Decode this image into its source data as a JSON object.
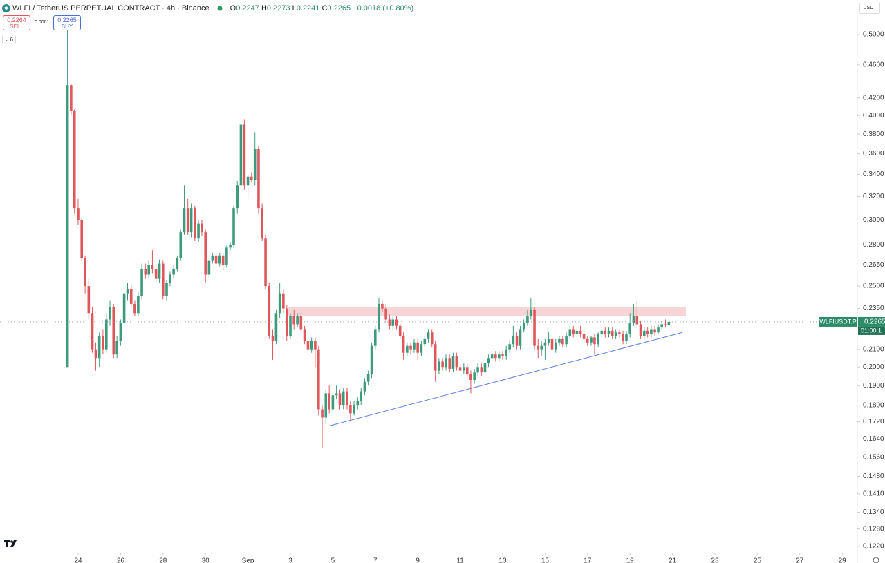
{
  "header": {
    "symbol": "WLFI / TetherUS PERPETUAL CONTRACT · 4h · Binance",
    "o": "O",
    "h": "H",
    "l": "L",
    "c": "C",
    "change": "+0.0018 (+0.80%)"
  },
  "trade": {
    "sell_price": "0.2264",
    "sell": "SELL",
    "spread": "0.0001",
    "buy_price": "0.2265",
    "buy": "BUY",
    "indicators": "6"
  },
  "currency": "USDT",
  "symbol_tag": "WLFIUSDT.P",
  "countdown": "01:00:1",
  "chart_data": {
    "type": "candlestick",
    "log_scale": true,
    "up_color": "#3d9a7c",
    "down_color": "#e0575b",
    "xlim": [
      20.32,
      60.71
    ],
    "ylim": [
      0.1199,
      0.55
    ],
    "xticks": [
      24,
      26,
      28,
      30,
      {
        "value": 32,
        "label": "Sep"
      },
      {
        "value": 34,
        "label": "3"
      },
      {
        "value": 36,
        "label": "5"
      },
      {
        "value": 38,
        "label": "7"
      },
      {
        "value": 40,
        "label": "9"
      },
      {
        "value": 42,
        "label": "11"
      },
      {
        "value": 44,
        "label": "13"
      },
      {
        "value": 46,
        "label": "15"
      },
      {
        "value": 48,
        "label": "17"
      },
      {
        "value": 50,
        "label": "19"
      },
      {
        "value": 52,
        "label": "21"
      },
      {
        "value": 54,
        "label": "23"
      },
      {
        "value": 56,
        "label": "25"
      },
      {
        "value": 58,
        "label": "27"
      },
      {
        "value": 60,
        "label": "29"
      }
    ],
    "yticks": [
      {
        "value": 0.5,
        "label": "0.5000"
      },
      {
        "value": 0.46,
        "label": "0.4600"
      },
      {
        "value": 0.42,
        "label": "0.4200"
      },
      {
        "value": 0.4,
        "label": "0.4000"
      },
      {
        "value": 0.38,
        "label": "0.3800"
      },
      {
        "value": 0.36,
        "label": "0.3600"
      },
      {
        "value": 0.34,
        "label": "0.3400"
      },
      {
        "value": 0.32,
        "label": "0.3200"
      },
      {
        "value": 0.3,
        "label": "0.3000"
      },
      {
        "value": 0.28,
        "label": "0.2800"
      },
      {
        "value": 0.265,
        "label": "0.2650"
      },
      {
        "value": 0.25,
        "label": "0.2500"
      },
      {
        "value": 0.235,
        "label": "0.2350"
      },
      {
        "value": 0.21,
        "label": "0.2100"
      },
      {
        "value": 0.2,
        "label": "0.2000"
      },
      {
        "value": 0.19,
        "label": "0.1900"
      },
      {
        "value": 0.18,
        "label": "0.1800"
      },
      {
        "value": 0.172,
        "label": "0.1720"
      },
      {
        "value": 0.164,
        "label": "0.1640"
      },
      {
        "value": 0.156,
        "label": "0.1560"
      },
      {
        "value": 0.148,
        "label": "0.1480"
      },
      {
        "value": 0.141,
        "label": "0.1410"
      },
      {
        "value": 0.134,
        "label": "0.1340"
      },
      {
        "value": 0.128,
        "label": "0.1280"
      },
      {
        "value": 0.122,
        "label": "0.1220"
      }
    ],
    "zone": {
      "x": [
        33.9,
        52.63
      ],
      "y": [
        0.23,
        0.236
      ],
      "color": "#f5c9cb"
    },
    "trendline": {
      "x": [
        35.82,
        52.47
      ],
      "y": [
        0.17,
        0.22
      ],
      "color": "#5b7fe0"
    },
    "x": [
      23.5,
      23.67,
      23.83,
      24,
      24.17,
      24.33,
      24.5,
      24.67,
      24.83,
      25,
      25.17,
      25.33,
      25.5,
      25.67,
      25.83,
      26,
      26.17,
      26.33,
      26.5,
      26.67,
      26.83,
      27,
      27.17,
      27.33,
      27.5,
      27.67,
      27.83,
      28,
      28.17,
      28.33,
      28.5,
      28.67,
      28.83,
      29,
      29.17,
      29.33,
      29.5,
      29.67,
      29.83,
      30,
      30.17,
      30.33,
      30.5,
      30.67,
      30.83,
      31,
      31.17,
      31.33,
      31.5,
      31.67,
      31.83,
      32,
      32.17,
      32.33,
      32.5,
      32.67,
      32.83,
      33,
      33.17,
      33.33,
      33.5,
      33.67,
      33.83,
      34,
      34.17,
      34.33,
      34.5,
      34.67,
      34.83,
      35,
      35.17,
      35.33,
      35.5,
      35.67,
      35.83,
      36,
      36.17,
      36.33,
      36.5,
      36.67,
      36.83,
      37,
      37.17,
      37.33,
      37.5,
      37.67,
      37.83,
      38,
      38.17,
      38.33,
      38.5,
      38.67,
      38.83,
      39,
      39.17,
      39.33,
      39.5,
      39.67,
      39.83,
      40,
      40.17,
      40.33,
      40.5,
      40.67,
      40.83,
      41,
      41.17,
      41.33,
      41.5,
      41.67,
      41.83,
      42,
      42.17,
      42.33,
      42.5,
      42.67,
      42.83,
      43,
      43.17,
      43.33,
      43.5,
      43.67,
      43.83,
      44,
      44.17,
      44.33,
      44.5,
      44.67,
      44.83,
      45,
      45.17,
      45.33,
      45.5,
      45.67,
      45.83,
      46,
      46.17,
      46.33,
      46.5,
      46.67,
      46.83,
      47,
      47.17,
      47.33,
      47.5,
      47.67,
      47.83,
      48,
      48.17,
      48.33,
      48.5,
      48.67,
      48.83,
      49,
      49.17,
      49.33,
      49.5,
      49.67,
      49.83,
      50,
      50.17,
      50.33,
      50.5,
      50.67,
      50.83,
      51,
      51.17,
      51.33,
      51.5,
      51.67,
      51.83
    ],
    "open": [
      0.2,
      0.435,
      0.405,
      0.31,
      0.3,
      0.27,
      0.25,
      0.232,
      0.21,
      0.205,
      0.218,
      0.21,
      0.228,
      0.236,
      0.207,
      0.215,
      0.226,
      0.245,
      0.248,
      0.238,
      0.232,
      0.243,
      0.262,
      0.258,
      0.265,
      0.262,
      0.255,
      0.266,
      0.243,
      0.252,
      0.258,
      0.262,
      0.27,
      0.29,
      0.31,
      0.29,
      0.31,
      0.285,
      0.297,
      0.29,
      0.258,
      0.268,
      0.272,
      0.266,
      0.272,
      0.265,
      0.278,
      0.28,
      0.31,
      0.33,
      0.39,
      0.33,
      0.338,
      0.335,
      0.365,
      0.31,
      0.285,
      0.25,
      0.218,
      0.215,
      0.232,
      0.245,
      0.235,
      0.218,
      0.23,
      0.225,
      0.23,
      0.222,
      0.215,
      0.21,
      0.215,
      0.21,
      0.178,
      0.174,
      0.186,
      0.178,
      0.185,
      0.186,
      0.18,
      0.187,
      0.18,
      0.176,
      0.18,
      0.182,
      0.187,
      0.192,
      0.196,
      0.212,
      0.222,
      0.238,
      0.235,
      0.228,
      0.224,
      0.228,
      0.224,
      0.218,
      0.208,
      0.212,
      0.21,
      0.214,
      0.208,
      0.213,
      0.216,
      0.22,
      0.213,
      0.198,
      0.203,
      0.2,
      0.205,
      0.199,
      0.206,
      0.2,
      0.198,
      0.2,
      0.196,
      0.193,
      0.197,
      0.2,
      0.197,
      0.202,
      0.205,
      0.207,
      0.205,
      0.207,
      0.206,
      0.21,
      0.213,
      0.218,
      0.212,
      0.222,
      0.226,
      0.23,
      0.234,
      0.212,
      0.21,
      0.212,
      0.214,
      0.216,
      0.21,
      0.214,
      0.216,
      0.213,
      0.218,
      0.222,
      0.219,
      0.221,
      0.219,
      0.216,
      0.214,
      0.217,
      0.213,
      0.219,
      0.221,
      0.219,
      0.221,
      0.218,
      0.22,
      0.219,
      0.215,
      0.219,
      0.226,
      0.23,
      0.225,
      0.218,
      0.221,
      0.219,
      0.222,
      0.22,
      0.223,
      0.225,
      0.2247
    ],
    "high": [
      0.51,
      0.437,
      0.407,
      0.318,
      0.302,
      0.272,
      0.255,
      0.236,
      0.214,
      0.22,
      0.222,
      0.232,
      0.24,
      0.238,
      0.218,
      0.228,
      0.247,
      0.252,
      0.251,
      0.24,
      0.246,
      0.266,
      0.266,
      0.268,
      0.276,
      0.265,
      0.269,
      0.268,
      0.254,
      0.26,
      0.265,
      0.272,
      0.292,
      0.33,
      0.318,
      0.314,
      0.312,
      0.3,
      0.3,
      0.292,
      0.27,
      0.274,
      0.274,
      0.274,
      0.274,
      0.28,
      0.282,
      0.312,
      0.334,
      0.392,
      0.396,
      0.34,
      0.342,
      0.382,
      0.368,
      0.314,
      0.288,
      0.252,
      0.222,
      0.234,
      0.252,
      0.248,
      0.237,
      0.232,
      0.234,
      0.232,
      0.232,
      0.224,
      0.217,
      0.217,
      0.217,
      0.212,
      0.18,
      0.188,
      0.19,
      0.187,
      0.19,
      0.188,
      0.189,
      0.189,
      0.182,
      0.182,
      0.184,
      0.189,
      0.194,
      0.198,
      0.214,
      0.224,
      0.242,
      0.24,
      0.238,
      0.231,
      0.23,
      0.23,
      0.226,
      0.22,
      0.214,
      0.214,
      0.216,
      0.216,
      0.215,
      0.218,
      0.222,
      0.222,
      0.215,
      0.205,
      0.205,
      0.207,
      0.207,
      0.208,
      0.208,
      0.202,
      0.202,
      0.202,
      0.198,
      0.199,
      0.202,
      0.202,
      0.204,
      0.207,
      0.209,
      0.209,
      0.209,
      0.209,
      0.212,
      0.215,
      0.224,
      0.22,
      0.224,
      0.228,
      0.234,
      0.242,
      0.236,
      0.216,
      0.215,
      0.216,
      0.22,
      0.218,
      0.216,
      0.218,
      0.218,
      0.22,
      0.224,
      0.224,
      0.223,
      0.224,
      0.221,
      0.218,
      0.218,
      0.219,
      0.22,
      0.223,
      0.223,
      0.223,
      0.223,
      0.222,
      0.222,
      0.221,
      0.221,
      0.232,
      0.238,
      0.24,
      0.227,
      0.223,
      0.223,
      0.224,
      0.224,
      0.225,
      0.227,
      0.228,
      0.2273
    ],
    "low": [
      0.2,
      0.4,
      0.305,
      0.296,
      0.268,
      0.245,
      0.228,
      0.208,
      0.198,
      0.2,
      0.207,
      0.208,
      0.224,
      0.205,
      0.205,
      0.212,
      0.224,
      0.24,
      0.236,
      0.23,
      0.23,
      0.241,
      0.255,
      0.255,
      0.259,
      0.252,
      0.252,
      0.241,
      0.24,
      0.25,
      0.255,
      0.26,
      0.268,
      0.288,
      0.288,
      0.286,
      0.283,
      0.282,
      0.287,
      0.252,
      0.256,
      0.266,
      0.264,
      0.264,
      0.261,
      0.263,
      0.276,
      0.278,
      0.305,
      0.328,
      0.326,
      0.318,
      0.333,
      0.33,
      0.305,
      0.283,
      0.248,
      0.216,
      0.204,
      0.213,
      0.229,
      0.232,
      0.215,
      0.216,
      0.222,
      0.223,
      0.22,
      0.213,
      0.208,
      0.208,
      0.2,
      0.175,
      0.16,
      0.171,
      0.176,
      0.176,
      0.183,
      0.178,
      0.178,
      0.178,
      0.172,
      0.175,
      0.178,
      0.18,
      0.185,
      0.19,
      0.194,
      0.21,
      0.22,
      0.233,
      0.226,
      0.222,
      0.222,
      0.222,
      0.216,
      0.204,
      0.206,
      0.207,
      0.208,
      0.204,
      0.206,
      0.211,
      0.214,
      0.211,
      0.192,
      0.196,
      0.198,
      0.198,
      0.197,
      0.197,
      0.198,
      0.196,
      0.196,
      0.194,
      0.186,
      0.191,
      0.195,
      0.195,
      0.195,
      0.2,
      0.203,
      0.203,
      0.203,
      0.204,
      0.204,
      0.208,
      0.211,
      0.21,
      0.21,
      0.22,
      0.224,
      0.228,
      0.21,
      0.205,
      0.206,
      0.204,
      0.212,
      0.204,
      0.208,
      0.212,
      0.211,
      0.211,
      0.216,
      0.217,
      0.217,
      0.217,
      0.214,
      0.212,
      0.212,
      0.207,
      0.211,
      0.217,
      0.217,
      0.217,
      0.216,
      0.216,
      0.217,
      0.213,
      0.213,
      0.217,
      0.224,
      0.223,
      0.216,
      0.216,
      0.217,
      0.217,
      0.218,
      0.219,
      0.221,
      0.223,
      0.2241
    ],
    "close": [
      0.435,
      0.405,
      0.31,
      0.3,
      0.27,
      0.25,
      0.232,
      0.21,
      0.205,
      0.218,
      0.21,
      0.228,
      0.236,
      0.207,
      0.215,
      0.226,
      0.245,
      0.248,
      0.238,
      0.232,
      0.243,
      0.262,
      0.258,
      0.265,
      0.262,
      0.255,
      0.266,
      0.243,
      0.252,
      0.258,
      0.262,
      0.27,
      0.29,
      0.31,
      0.29,
      0.31,
      0.285,
      0.297,
      0.29,
      0.258,
      0.268,
      0.272,
      0.266,
      0.272,
      0.265,
      0.278,
      0.28,
      0.31,
      0.33,
      0.39,
      0.33,
      0.338,
      0.335,
      0.365,
      0.31,
      0.285,
      0.25,
      0.218,
      0.215,
      0.232,
      0.245,
      0.235,
      0.218,
      0.23,
      0.225,
      0.23,
      0.222,
      0.215,
      0.21,
      0.215,
      0.21,
      0.178,
      0.174,
      0.186,
      0.178,
      0.185,
      0.186,
      0.18,
      0.187,
      0.18,
      0.176,
      0.18,
      0.182,
      0.187,
      0.192,
      0.196,
      0.212,
      0.222,
      0.238,
      0.235,
      0.228,
      0.224,
      0.228,
      0.224,
      0.218,
      0.208,
      0.212,
      0.21,
      0.214,
      0.208,
      0.213,
      0.216,
      0.22,
      0.213,
      0.198,
      0.203,
      0.2,
      0.205,
      0.199,
      0.206,
      0.2,
      0.198,
      0.2,
      0.196,
      0.193,
      0.197,
      0.2,
      0.197,
      0.202,
      0.205,
      0.207,
      0.205,
      0.207,
      0.206,
      0.21,
      0.213,
      0.218,
      0.212,
      0.222,
      0.226,
      0.23,
      0.234,
      0.212,
      0.21,
      0.212,
      0.214,
      0.216,
      0.21,
      0.214,
      0.216,
      0.213,
      0.218,
      0.222,
      0.219,
      0.221,
      0.219,
      0.216,
      0.214,
      0.217,
      0.213,
      0.219,
      0.221,
      0.219,
      0.221,
      0.218,
      0.22,
      0.219,
      0.215,
      0.219,
      0.226,
      0.23,
      0.225,
      0.218,
      0.221,
      0.219,
      0.222,
      0.22,
      0.223,
      0.225,
      0.2247,
      0.2265
    ]
  }
}
